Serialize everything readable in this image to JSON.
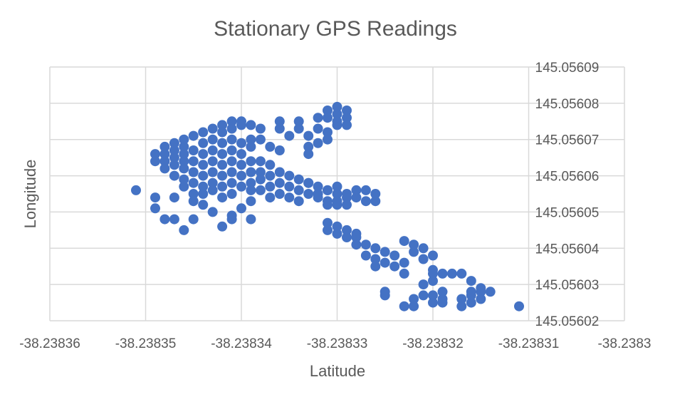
{
  "chart_data": {
    "type": "scatter",
    "title": "Stationary GPS Readings",
    "xlabel": "Latitude",
    "ylabel": "Longitude",
    "xlim": [
      -38.23836,
      -38.2383
    ],
    "ylim": [
      145.05602,
      145.05609
    ],
    "x_ticks": [
      "-38.23836",
      "-38.23835",
      "-38.23834",
      "-38.23833",
      "-38.23832",
      "-38.23831",
      "-38.2383"
    ],
    "y_ticks": [
      "145.05609",
      "145.05608",
      "145.05607",
      "145.05606",
      "145.05605",
      "145.05604",
      "145.05603",
      "145.05602"
    ],
    "grid": true,
    "marker_color": "#4472c4",
    "series": [
      {
        "points": [
          [
            -38.238351,
            145.056056
          ],
          [
            -38.238349,
            145.056054
          ],
          [
            -38.238349,
            145.056051
          ],
          [
            -38.238348,
            145.056048
          ],
          [
            -38.238347,
            145.056054
          ],
          [
            -38.238347,
            145.056048
          ],
          [
            -38.238346,
            145.056045
          ],
          [
            -38.238345,
            145.056053
          ],
          [
            -38.238345,
            145.056048
          ],
          [
            -38.238344,
            145.056052
          ],
          [
            -38.238343,
            145.05605
          ],
          [
            -38.238342,
            145.056054
          ],
          [
            -38.238342,
            145.056046
          ],
          [
            -38.238341,
            145.056049
          ],
          [
            -38.238341,
            145.056048
          ],
          [
            -38.23834,
            145.056051
          ],
          [
            -38.238339,
            145.056053
          ],
          [
            -38.238339,
            145.056048
          ],
          [
            -38.238348,
            145.056066
          ],
          [
            -38.238348,
            145.056064
          ],
          [
            -38.238348,
            145.056062
          ],
          [
            -38.238347,
            145.056067
          ],
          [
            -38.238347,
            145.056065
          ],
          [
            -38.238347,
            145.056063
          ],
          [
            -38.238347,
            145.05606
          ],
          [
            -38.238346,
            145.056068
          ],
          [
            -38.238346,
            145.056066
          ],
          [
            -38.238346,
            145.056064
          ],
          [
            -38.238346,
            145.056062
          ],
          [
            -38.238346,
            145.056059
          ],
          [
            -38.238346,
            145.056057
          ],
          [
            -38.238345,
            145.056067
          ],
          [
            -38.238345,
            145.056064
          ],
          [
            -38.238345,
            145.056061
          ],
          [
            -38.238345,
            145.056058
          ],
          [
            -38.238345,
            145.056055
          ],
          [
            -38.238344,
            145.056069
          ],
          [
            -38.238344,
            145.056066
          ],
          [
            -38.238344,
            145.056063
          ],
          [
            -38.238344,
            145.05606
          ],
          [
            -38.238344,
            145.056057
          ],
          [
            -38.238344,
            145.056055
          ],
          [
            -38.238343,
            145.05607
          ],
          [
            -38.238343,
            145.056067
          ],
          [
            -38.238343,
            145.056064
          ],
          [
            -38.238343,
            145.056061
          ],
          [
            -38.238343,
            145.056058
          ],
          [
            -38.238343,
            145.056056
          ],
          [
            -38.238342,
            145.056072
          ],
          [
            -38.238342,
            145.056069
          ],
          [
            -38.238342,
            145.056066
          ],
          [
            -38.238342,
            145.056063
          ],
          [
            -38.238342,
            145.05606
          ],
          [
            -38.238342,
            145.056057
          ],
          [
            -38.238341,
            145.056073
          ],
          [
            -38.238341,
            145.05607
          ],
          [
            -38.238341,
            145.056067
          ],
          [
            -38.238341,
            145.056064
          ],
          [
            -38.238341,
            145.056061
          ],
          [
            -38.238341,
            145.056058
          ],
          [
            -38.238341,
            145.056055
          ],
          [
            -38.23834,
            145.056074
          ],
          [
            -38.23834,
            145.056066
          ],
          [
            -38.23834,
            145.056063
          ],
          [
            -38.23834,
            145.05606
          ],
          [
            -38.23834,
            145.056057
          ],
          [
            -38.238339,
            145.056064
          ],
          [
            -38.238339,
            145.056061
          ],
          [
            -38.238339,
            145.056058
          ],
          [
            -38.238339,
            145.056056
          ],
          [
            -38.238338,
            145.056064
          ],
          [
            -38.238338,
            145.056061
          ],
          [
            -38.238338,
            145.056059
          ],
          [
            -38.238338,
            145.056056
          ],
          [
            -38.238337,
            145.056063
          ],
          [
            -38.238337,
            145.05606
          ],
          [
            -38.238337,
            145.056057
          ],
          [
            -38.238337,
            145.056054
          ],
          [
            -38.238336,
            145.056061
          ],
          [
            -38.238336,
            145.056058
          ],
          [
            -38.238336,
            145.056055
          ],
          [
            -38.238335,
            145.05606
          ],
          [
            -38.238335,
            145.056057
          ],
          [
            -38.238335,
            145.056054
          ],
          [
            -38.238334,
            145.056059
          ],
          [
            -38.238334,
            145.056056
          ],
          [
            -38.238334,
            145.056053
          ],
          [
            -38.238333,
            145.056058
          ],
          [
            -38.238333,
            145.056055
          ],
          [
            -38.238332,
            145.056057
          ],
          [
            -38.238332,
            145.056054
          ],
          [
            -38.238331,
            145.056056
          ],
          [
            -38.238331,
            145.056053
          ],
          [
            -38.23833,
            145.056055
          ],
          [
            -38.23833,
            145.056052
          ],
          [
            -38.238329,
            145.056054
          ],
          [
            -38.238349,
            145.056066
          ],
          [
            -38.238349,
            145.056064
          ],
          [
            -38.238348,
            145.056068
          ],
          [
            -38.238347,
            145.056069
          ],
          [
            -38.238346,
            145.05607
          ],
          [
            -38.238345,
            145.056071
          ],
          [
            -38.238344,
            145.056072
          ],
          [
            -38.238343,
            145.056073
          ],
          [
            -38.238342,
            145.056074
          ],
          [
            -38.238341,
            145.056075
          ],
          [
            -38.23834,
            145.056075
          ],
          [
            -38.238339,
            145.056074
          ],
          [
            -38.238338,
            145.056073
          ],
          [
            -38.238338,
            145.05607
          ],
          [
            -38.238337,
            145.056068
          ],
          [
            -38.238336,
            145.056067
          ],
          [
            -38.238339,
            145.05607
          ],
          [
            -38.238339,
            145.056068
          ],
          [
            -38.23834,
            145.056069
          ],
          [
            -38.238336,
            145.056075
          ],
          [
            -38.238336,
            145.056073
          ],
          [
            -38.238335,
            145.056071
          ],
          [
            -38.238334,
            145.056075
          ],
          [
            -38.238334,
            145.056073
          ],
          [
            -38.238333,
            145.056071
          ],
          [
            -38.238332,
            145.056073
          ],
          [
            -38.238332,
            145.056076
          ],
          [
            -38.238333,
            145.056068
          ],
          [
            -38.238333,
            145.056066
          ],
          [
            -38.238332,
            145.056069
          ],
          [
            -38.238331,
            145.05607
          ],
          [
            -38.238331,
            145.056072
          ],
          [
            -38.23833,
            145.056074
          ],
          [
            -38.23833,
            145.056077
          ],
          [
            -38.23833,
            145.056079
          ],
          [
            -38.238329,
            145.056078
          ],
          [
            -38.238329,
            145.056076
          ],
          [
            -38.238329,
            145.056074
          ],
          [
            -38.23833,
            145.056075
          ],
          [
            -38.238331,
            145.056078
          ],
          [
            -38.238331,
            145.056076
          ],
          [
            -38.238333,
            145.056058
          ],
          [
            -38.238332,
            145.056055
          ],
          [
            -38.238331,
            145.056056
          ],
          [
            -38.238331,
            145.056052
          ],
          [
            -38.23833,
            145.056053
          ],
          [
            -38.23833,
            145.056057
          ],
          [
            -38.238329,
            145.056055
          ],
          [
            -38.238329,
            145.056052
          ],
          [
            -38.238331,
            145.056047
          ],
          [
            -38.238331,
            145.056045
          ],
          [
            -38.23833,
            145.056044
          ],
          [
            -38.23833,
            145.056046
          ],
          [
            -38.238329,
            145.056045
          ],
          [
            -38.238329,
            145.056043
          ],
          [
            -38.238328,
            145.056043
          ],
          [
            -38.238328,
            145.056044
          ],
          [
            -38.238328,
            145.056056
          ],
          [
            -38.238328,
            145.056054
          ],
          [
            -38.238327,
            145.056056
          ],
          [
            -38.238327,
            145.056053
          ],
          [
            -38.238326,
            145.056055
          ],
          [
            -38.238326,
            145.056053
          ],
          [
            -38.238328,
            145.056041
          ],
          [
            -38.238327,
            145.056041
          ],
          [
            -38.238327,
            145.056038
          ],
          [
            -38.238326,
            145.05604
          ],
          [
            -38.238326,
            145.056037
          ],
          [
            -38.238326,
            145.056035
          ],
          [
            -38.238325,
            145.056039
          ],
          [
            -38.238325,
            145.056036
          ],
          [
            -38.238324,
            145.056038
          ],
          [
            -38.238324,
            145.056035
          ],
          [
            -38.238323,
            145.056036
          ],
          [
            -38.238323,
            145.056033
          ],
          [
            -38.238323,
            145.056042
          ],
          [
            -38.238322,
            145.056041
          ],
          [
            -38.238322,
            145.056039
          ],
          [
            -38.238321,
            145.05604
          ],
          [
            -38.238321,
            145.056037
          ],
          [
            -38.23832,
            145.056038
          ],
          [
            -38.23832,
            145.056034
          ],
          [
            -38.238319,
            145.056033
          ],
          [
            -38.238318,
            145.056033
          ],
          [
            -38.238317,
            145.056033
          ],
          [
            -38.238316,
            145.056031
          ],
          [
            -38.238325,
            145.056027
          ],
          [
            -38.238325,
            145.056028
          ],
          [
            -38.238323,
            145.056024
          ],
          [
            -38.238322,
            145.056024
          ],
          [
            -38.238322,
            145.056026
          ],
          [
            -38.238321,
            145.056027
          ],
          [
            -38.23832,
            145.056025
          ],
          [
            -38.23832,
            145.056027
          ],
          [
            -38.238319,
            145.056025
          ],
          [
            -38.238319,
            145.056028
          ],
          [
            -38.238319,
            145.056026
          ],
          [
            -38.238321,
            145.05603
          ],
          [
            -38.23832,
            145.056031
          ],
          [
            -38.23832,
            145.056033
          ],
          [
            -38.238317,
            145.056024
          ],
          [
            -38.238317,
            145.056026
          ],
          [
            -38.238316,
            145.056025
          ],
          [
            -38.238316,
            145.056027
          ],
          [
            -38.238316,
            145.056028
          ],
          [
            -38.238315,
            145.056026
          ],
          [
            -38.238315,
            145.056028
          ],
          [
            -38.238315,
            145.056029
          ],
          [
            -38.238314,
            145.056028
          ],
          [
            -38.238311,
            145.056024
          ]
        ]
      }
    ]
  }
}
